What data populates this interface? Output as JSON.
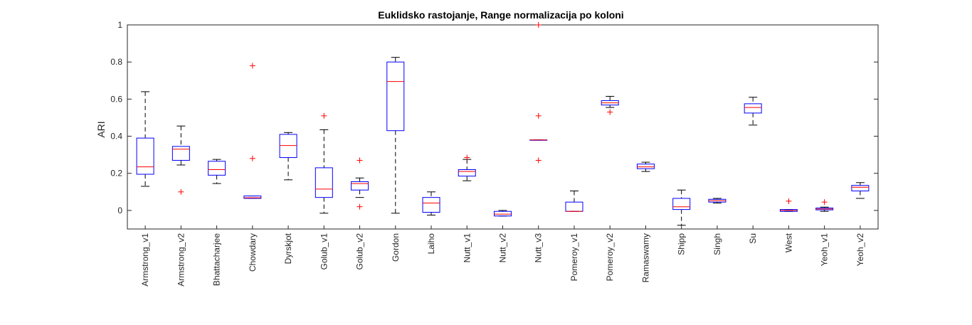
{
  "chart_data": {
    "type": "boxplot",
    "title": "Euklidsko rastojanje, Range normalizacija po koloni",
    "xlabel": "",
    "ylabel": "ARI",
    "ylim": [
      -0.1,
      1.0
    ],
    "yticks": [
      0,
      0.2,
      0.4,
      0.6,
      0.8,
      1
    ],
    "ytick_labels": [
      "0",
      "0.2",
      "0.4",
      "0.6",
      "0.8",
      "1"
    ],
    "grid": false,
    "colors": {
      "box": "#0000ff",
      "median": "#ff0000",
      "whisker": "#000000",
      "outlier": "#ff0000"
    },
    "categories": [
      "Armstrong_v1",
      "Armstrong_v2",
      "Bhattacharjee",
      "Chowdary",
      "Dyrskjot",
      "Golub_v1",
      "Golub_v2",
      "Gordon",
      "Laiho",
      "Nutt_v1",
      "Nutt_v2",
      "Nutt_v3",
      "Pomeroy_v1",
      "Pomeroy_v2",
      "Ramaswamy",
      "Shipp",
      "Singh",
      "Su",
      "West",
      "Yeoh_v1",
      "Yeoh_v2"
    ],
    "boxes": [
      {
        "whislo": 0.13,
        "q1": 0.195,
        "med": 0.235,
        "q3": 0.39,
        "whishi": 0.64,
        "fliers": []
      },
      {
        "whislo": 0.245,
        "q1": 0.27,
        "med": 0.33,
        "q3": 0.345,
        "whishi": 0.455,
        "fliers": [
          0.1
        ]
      },
      {
        "whislo": 0.145,
        "q1": 0.19,
        "med": 0.22,
        "q3": 0.265,
        "whishi": 0.275,
        "fliers": []
      },
      {
        "whislo": 0.065,
        "q1": 0.065,
        "med": 0.068,
        "q3": 0.078,
        "whishi": 0.078,
        "fliers": [
          0.28,
          0.78
        ]
      },
      {
        "whislo": 0.165,
        "q1": 0.285,
        "med": 0.35,
        "q3": 0.41,
        "whishi": 0.42,
        "fliers": []
      },
      {
        "whislo": -0.015,
        "q1": 0.07,
        "med": 0.115,
        "q3": 0.23,
        "whishi": 0.435,
        "fliers": [
          0.51
        ]
      },
      {
        "whislo": 0.07,
        "q1": 0.11,
        "med": 0.145,
        "q3": 0.155,
        "whishi": 0.175,
        "fliers": [
          0.27,
          0.02
        ]
      },
      {
        "whislo": -0.015,
        "q1": 0.43,
        "med": 0.695,
        "q3": 0.8,
        "whishi": 0.825,
        "fliers": []
      },
      {
        "whislo": -0.025,
        "q1": -0.01,
        "med": 0.04,
        "q3": 0.07,
        "whishi": 0.1,
        "fliers": []
      },
      {
        "whislo": 0.16,
        "q1": 0.185,
        "med": 0.21,
        "q3": 0.22,
        "whishi": 0.275,
        "fliers": [
          0.285
        ]
      },
      {
        "whislo": -0.03,
        "q1": -0.03,
        "med": -0.02,
        "q3": -0.005,
        "whishi": 0.0,
        "fliers": []
      },
      {
        "whislo": 0.38,
        "q1": 0.38,
        "med": 0.38,
        "q3": 0.38,
        "whishi": 0.38,
        "fliers": [
          0.51,
          0.27,
          1.0
        ]
      },
      {
        "whislo": -0.005,
        "q1": -0.005,
        "med": -0.005,
        "q3": 0.045,
        "whishi": 0.105,
        "fliers": []
      },
      {
        "whislo": 0.555,
        "q1": 0.568,
        "med": 0.58,
        "q3": 0.592,
        "whishi": 0.615,
        "fliers": [
          0.53
        ]
      },
      {
        "whislo": 0.21,
        "q1": 0.225,
        "med": 0.235,
        "q3": 0.25,
        "whishi": 0.26,
        "fliers": []
      },
      {
        "whislo": -0.08,
        "q1": 0.005,
        "med": 0.02,
        "q3": 0.065,
        "whishi": 0.11,
        "fliers": []
      },
      {
        "whislo": 0.04,
        "q1": 0.045,
        "med": 0.053,
        "q3": 0.06,
        "whishi": 0.065,
        "fliers": []
      },
      {
        "whislo": 0.46,
        "q1": 0.525,
        "med": 0.555,
        "q3": 0.575,
        "whishi": 0.61,
        "fliers": []
      },
      {
        "whislo": -0.005,
        "q1": -0.005,
        "med": 0.0,
        "q3": 0.005,
        "whishi": 0.005,
        "fliers": [
          0.05
        ]
      },
      {
        "whislo": -0.005,
        "q1": 0.003,
        "med": 0.008,
        "q3": 0.013,
        "whishi": 0.018,
        "fliers": [
          0.045
        ]
      },
      {
        "whislo": 0.065,
        "q1": 0.105,
        "med": 0.125,
        "q3": 0.135,
        "whishi": 0.15,
        "fliers": []
      }
    ]
  }
}
